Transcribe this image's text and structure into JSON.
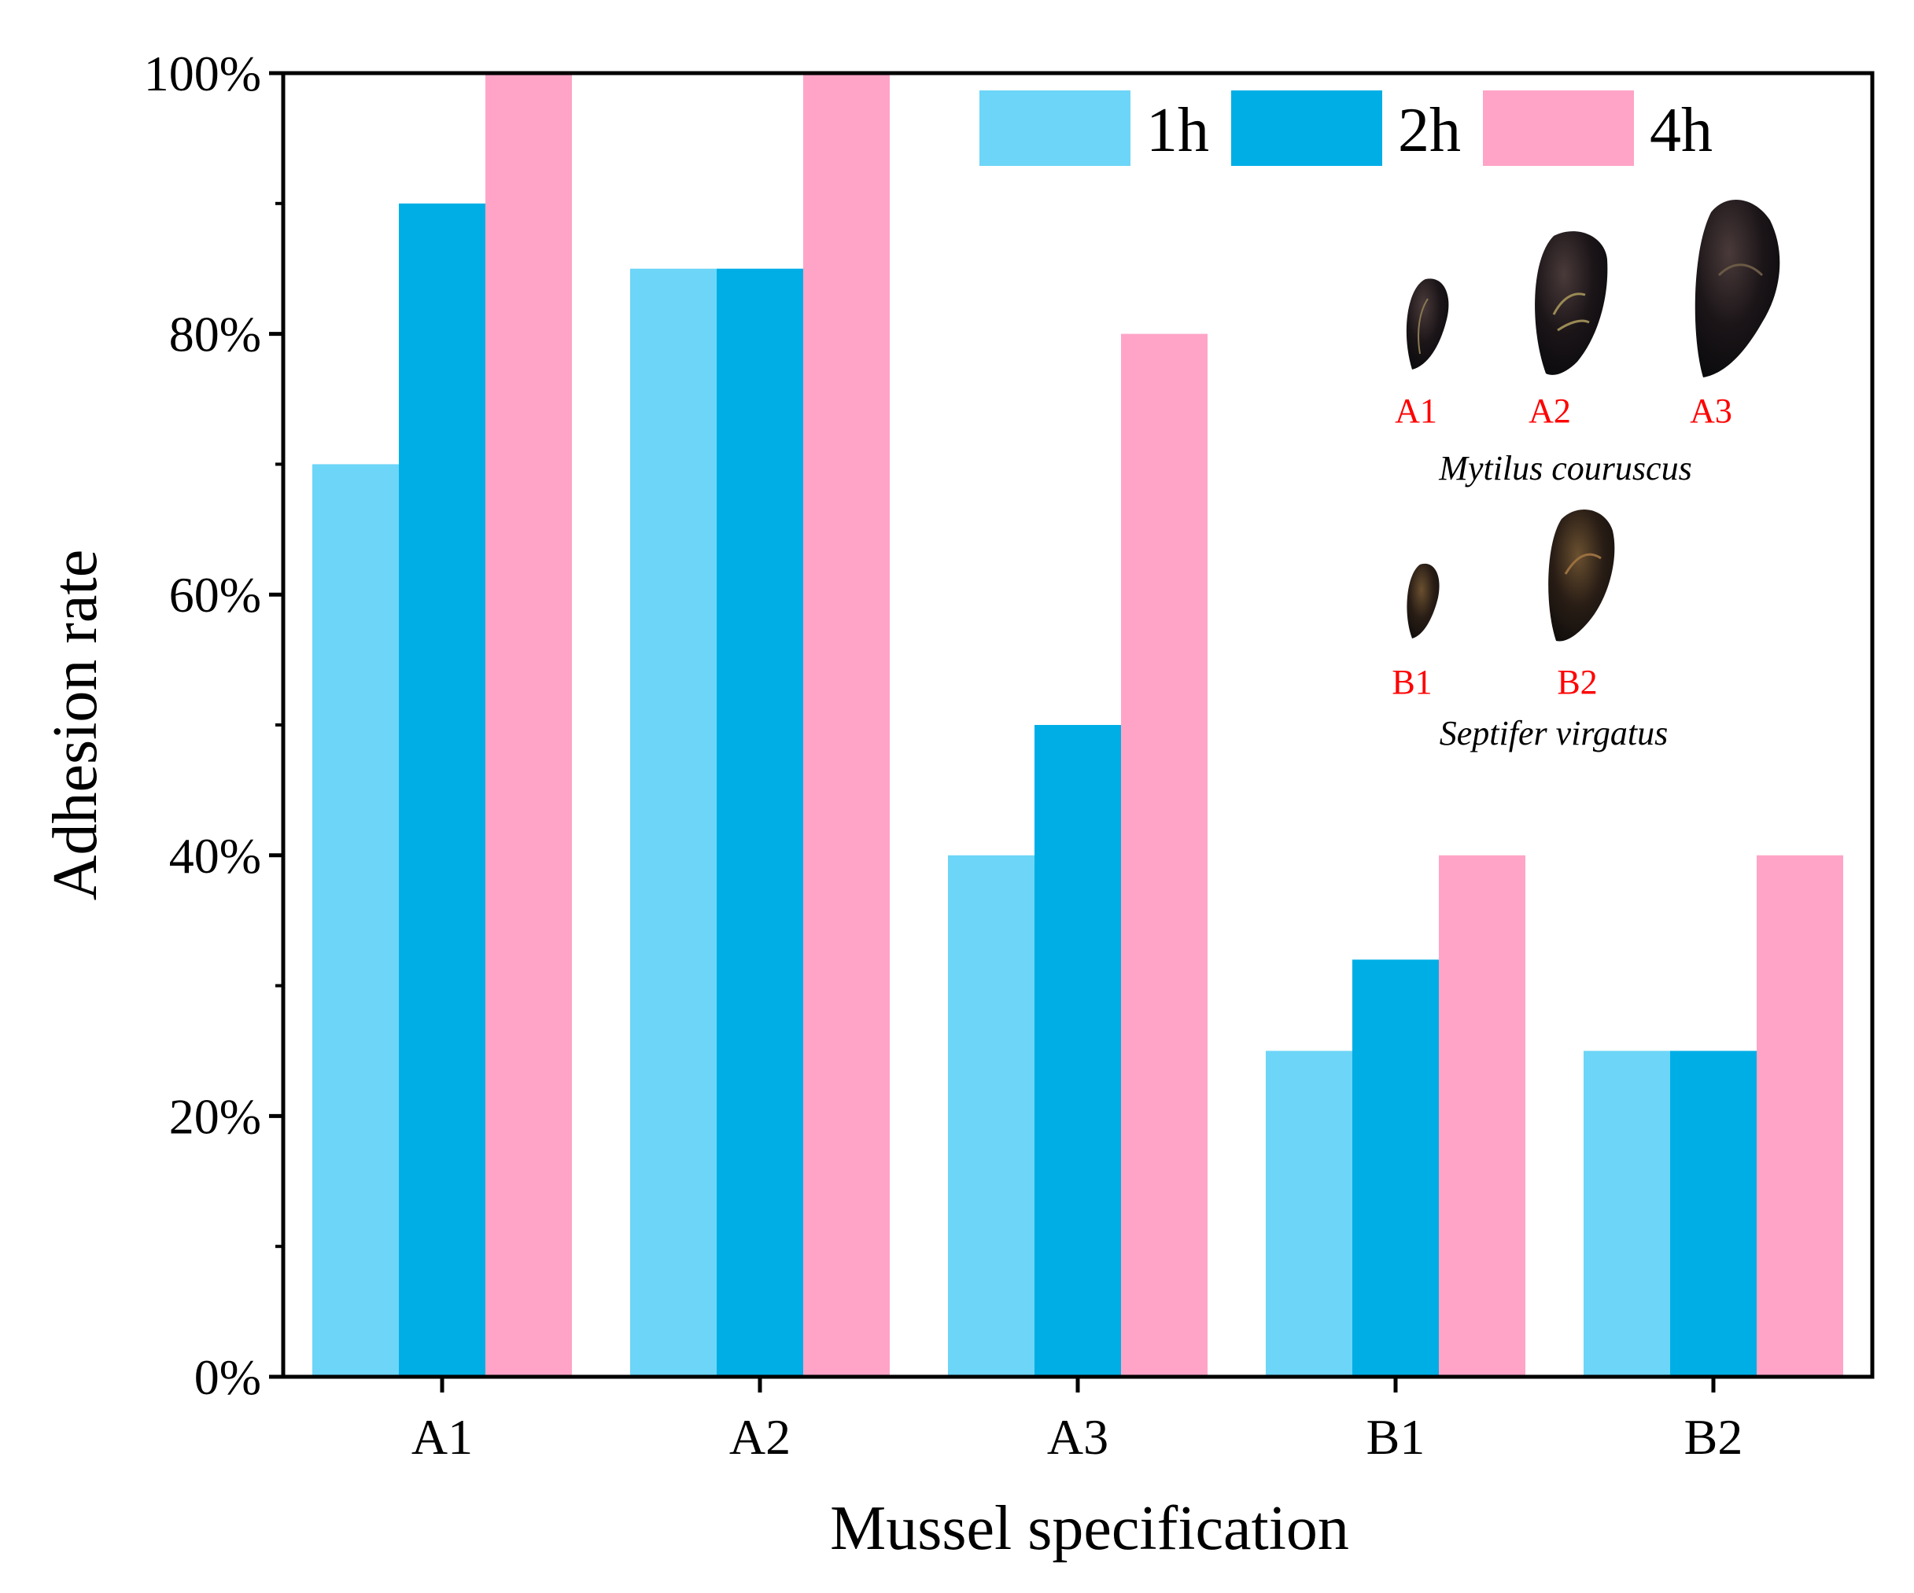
{
  "chart_data": {
    "type": "bar",
    "xlabel": "Mussel specification",
    "ylabel": "Adhesion rate",
    "categories": [
      "A1",
      "A2",
      "A3",
      "B1",
      "B2"
    ],
    "ylim": [
      0,
      100
    ],
    "yticks": [
      0,
      20,
      40,
      60,
      80,
      100
    ],
    "ytick_labels": [
      "0%",
      "20%",
      "40%",
      "60%",
      "80%",
      "100%"
    ],
    "series": [
      {
        "name": "1h",
        "color": "#6dd5f7",
        "values": [
          70,
          85,
          40,
          25,
          25
        ]
      },
      {
        "name": "2h",
        "color": "#00aee6",
        "values": [
          90,
          85,
          50,
          32,
          25
        ]
      },
      {
        "name": "4h",
        "color": "#ffa4c7",
        "values": [
          100,
          100,
          80,
          40,
          40
        ]
      }
    ],
    "legend_position": "top-right",
    "inset": {
      "species": [
        {
          "name": "Mytilus couruscus",
          "specimens": [
            "A1",
            "A2",
            "A3"
          ]
        },
        {
          "name": "Septifer virgatus",
          "specimens": [
            "B1",
            "B2"
          ]
        }
      ],
      "label_color": "#ff0000"
    }
  }
}
